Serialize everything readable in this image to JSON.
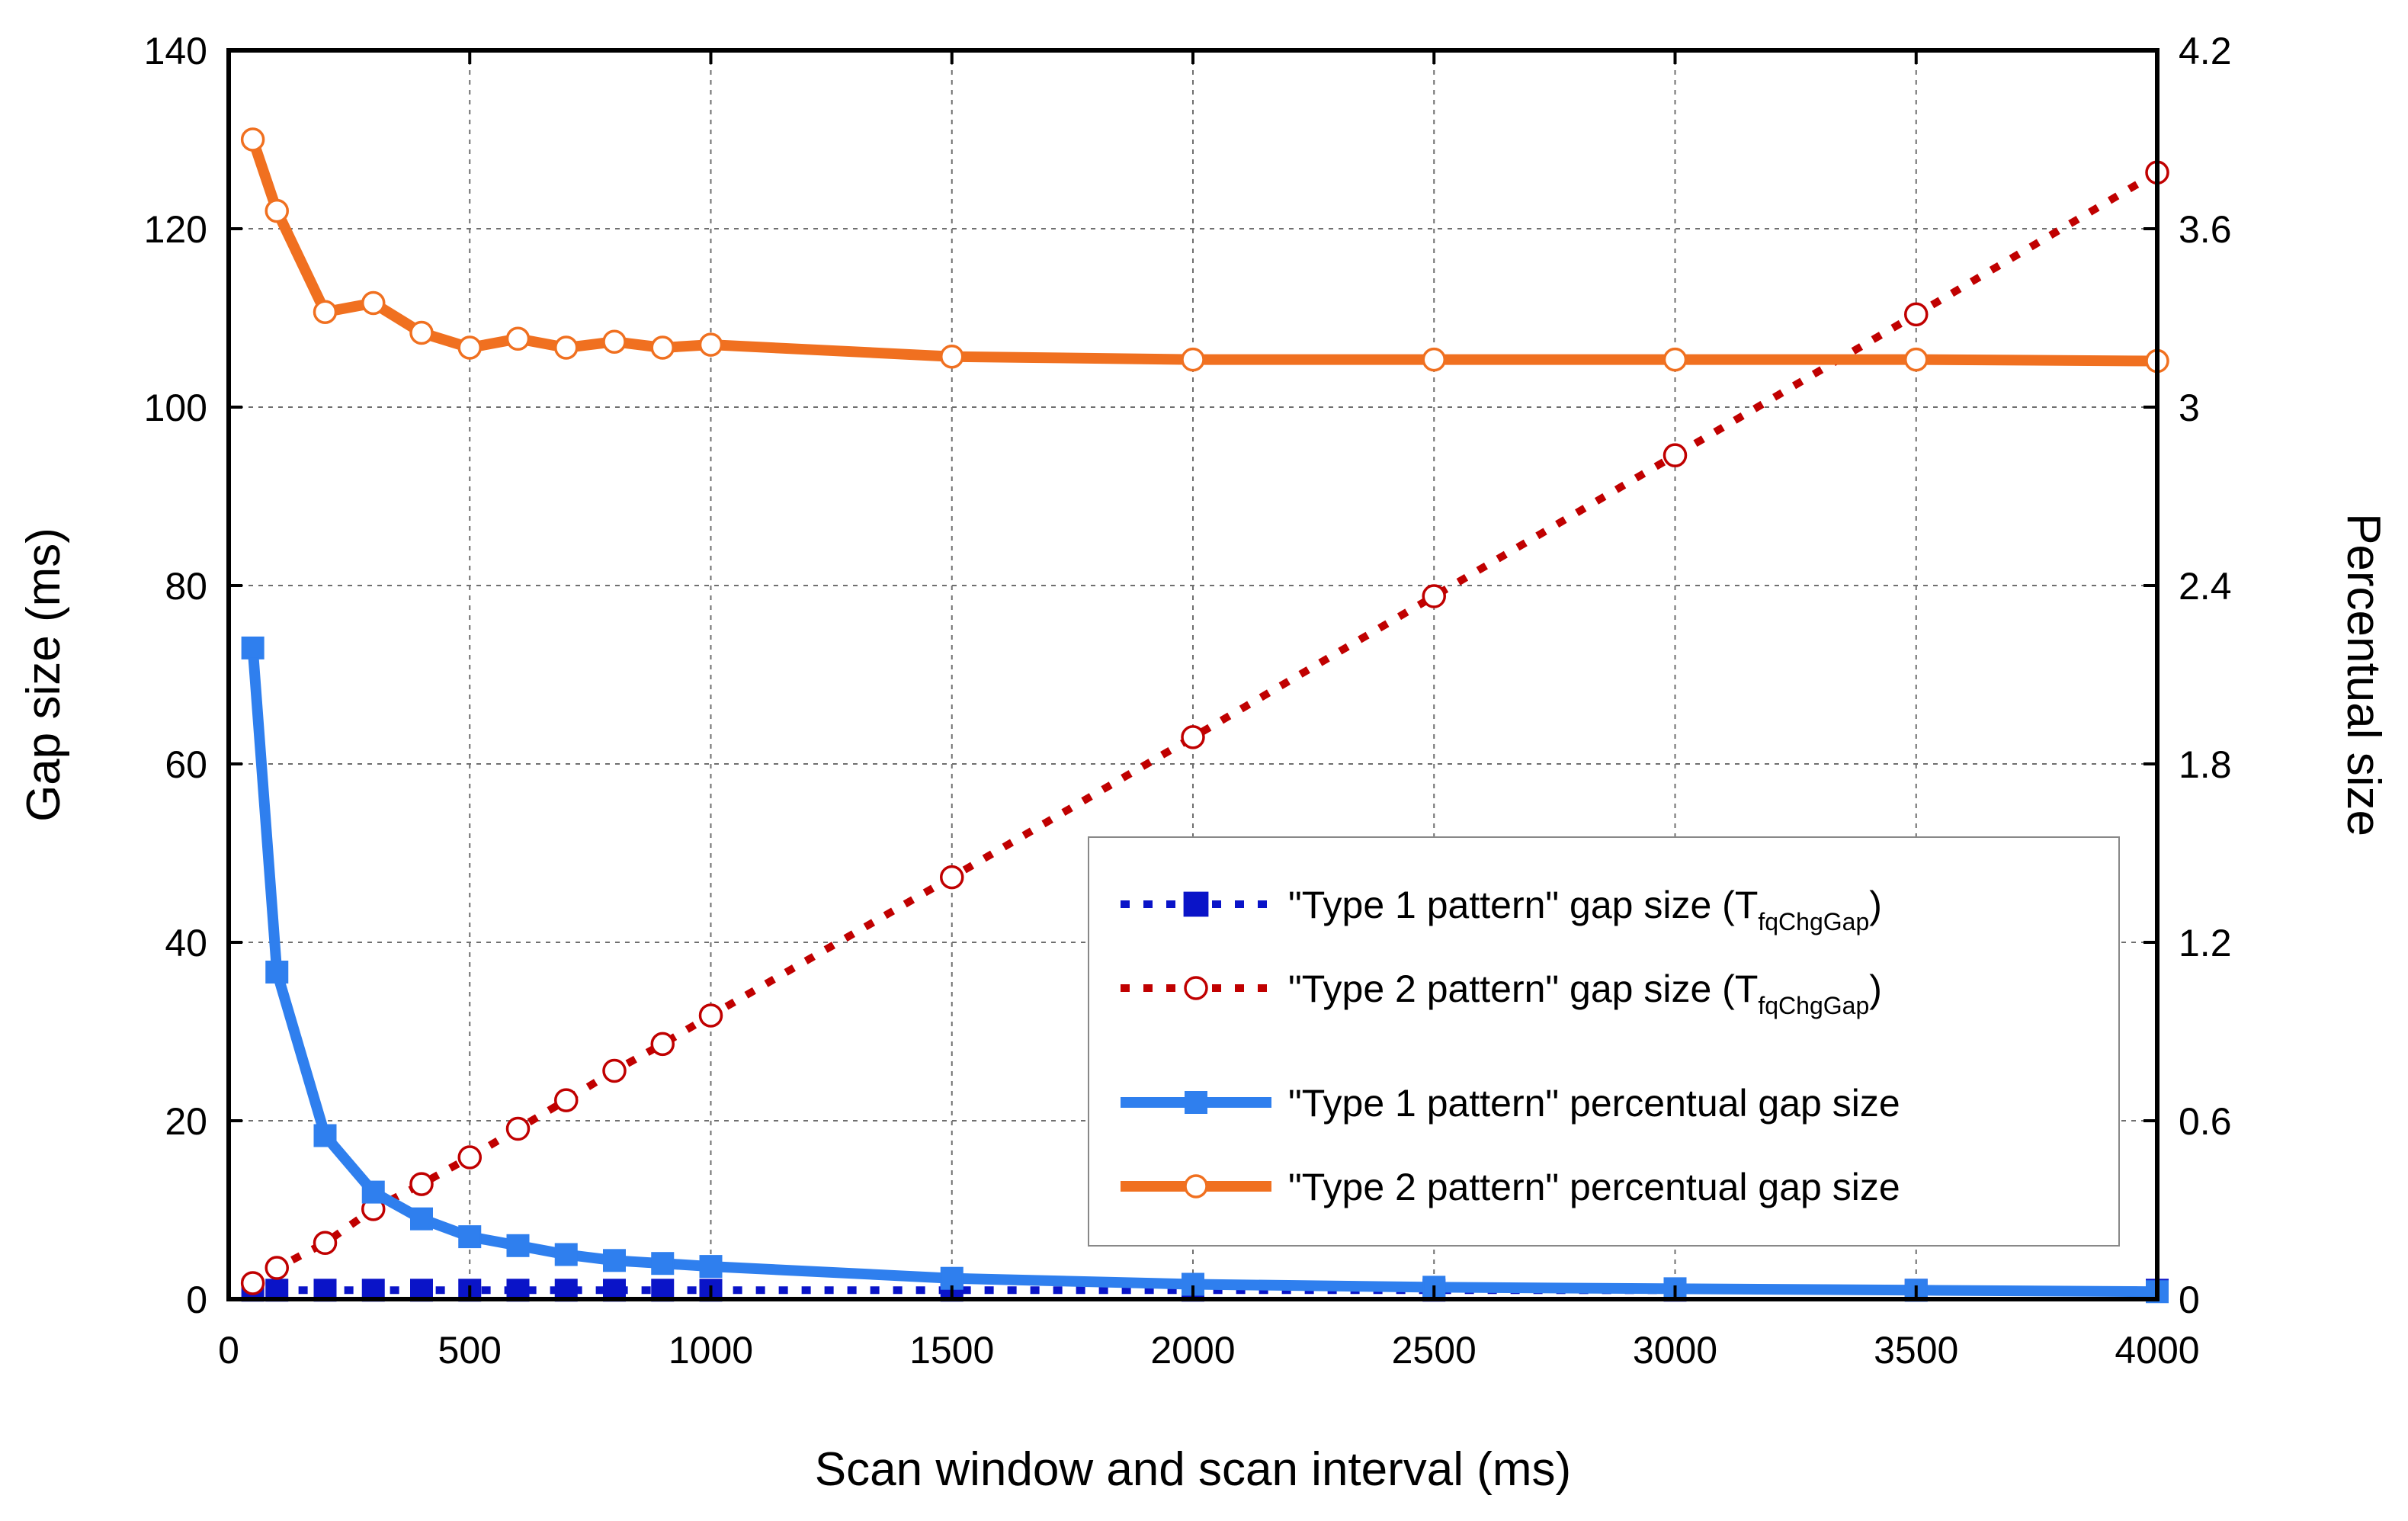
{
  "chart_data": {
    "type": "line",
    "xlabel": "Scan window and scan interval (ms)",
    "ylabel": "Gap size (ms)",
    "y2label": "Percentual size",
    "xlim": [
      0,
      4000
    ],
    "ylim": [
      0,
      140
    ],
    "y2lim": [
      0,
      4.2
    ],
    "xticks": [
      "0",
      "500",
      "1000",
      "1500",
      "2000",
      "2500",
      "3000",
      "3500",
      "4000"
    ],
    "yticks": [
      "0",
      "20",
      "40",
      "60",
      "80",
      "100",
      "120",
      "140"
    ],
    "y2ticks": [
      "0",
      "0.6",
      "1.2",
      "1.8",
      "2.4",
      "3",
      "3.6",
      "4.2"
    ],
    "grid": true,
    "legend_position": "lower-right",
    "series": [
      {
        "name": "\"Type 1 pattern\" gap size (T",
        "subscript": "fqChgGap",
        "suffix": ")",
        "axis": "left",
        "color": "#0a14c8",
        "line": "dotted",
        "marker": "square-filled",
        "x": [
          50,
          100,
          200,
          300,
          400,
          500,
          600,
          700,
          800,
          900,
          1000,
          1500,
          2000,
          2500,
          3000,
          3500,
          4000
        ],
        "y": [
          1,
          1,
          1,
          1,
          1,
          1,
          1,
          1,
          1,
          1,
          1,
          1,
          1,
          1,
          1,
          1,
          1
        ]
      },
      {
        "name": "\"Type 2 pattern\" gap size (T",
        "subscript": "fqChgGap",
        "suffix": ")",
        "axis": "left",
        "color": "#c00000",
        "line": "dotted",
        "marker": "circle-open",
        "x": [
          50,
          100,
          200,
          300,
          400,
          500,
          600,
          700,
          800,
          900,
          1000,
          1500,
          2000,
          2500,
          3000,
          3500,
          4000
        ],
        "y": [
          1.8,
          3.5,
          6.3,
          10.1,
          12.9,
          15.9,
          19.1,
          22.3,
          25.6,
          28.6,
          31.8,
          47.3,
          63,
          78.8,
          94.6,
          110.4,
          126.3
        ]
      },
      {
        "name": "\"Type 1 pattern\"  percentual gap size",
        "axis": "right",
        "color": "#2f7fee",
        "line": "solid",
        "marker": "square-filled",
        "x": [
          50,
          100,
          200,
          300,
          400,
          500,
          600,
          700,
          800,
          900,
          1000,
          1500,
          2000,
          2500,
          3000,
          3500,
          4000
        ],
        "y": [
          2.19,
          1.1,
          0.55,
          0.36,
          0.27,
          0.21,
          0.18,
          0.15,
          0.13,
          0.12,
          0.11,
          0.07,
          0.05,
          0.04,
          0.035,
          0.03,
          0.025
        ]
      },
      {
        "name": "\"Type 2 pattern\"  percentual gap size",
        "axis": "right",
        "color": "#f07020",
        "line": "solid",
        "marker": "circle-open",
        "x": [
          50,
          100,
          200,
          300,
          400,
          500,
          600,
          700,
          800,
          900,
          1000,
          1500,
          2000,
          2500,
          3000,
          3500,
          4000
        ],
        "y": [
          3.9,
          3.66,
          3.32,
          3.35,
          3.25,
          3.2,
          3.23,
          3.2,
          3.22,
          3.2,
          3.21,
          3.17,
          3.16,
          3.16,
          3.16,
          3.16,
          3.155
        ]
      }
    ]
  }
}
